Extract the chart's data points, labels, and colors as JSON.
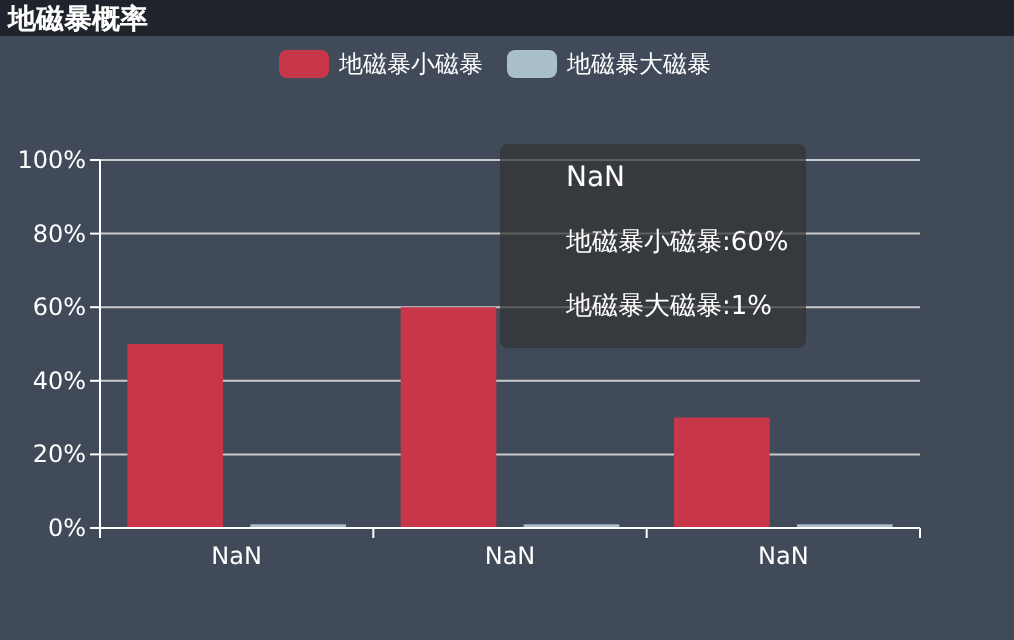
{
  "chart_data": {
    "type": "bar",
    "title": "地磁暴概率",
    "categories": [
      "NaN",
      "NaN",
      "NaN"
    ],
    "series": [
      {
        "name": "地磁暴小磁暴",
        "color": "#c8364a",
        "values": [
          50,
          60,
          30
        ]
      },
      {
        "name": "地磁暴大磁暴",
        "color": "#a9bfcb",
        "values": [
          1,
          1,
          1
        ]
      }
    ],
    "ylim": [
      0,
      100
    ],
    "yticks": [
      {
        "value": 0,
        "label": "0%"
      },
      {
        "value": 20,
        "label": "20%"
      },
      {
        "value": 40,
        "label": "40%"
      },
      {
        "value": 60,
        "label": "60%"
      },
      {
        "value": 80,
        "label": "80%"
      },
      {
        "value": 100,
        "label": "100%"
      }
    ],
    "grid": "y",
    "legend": "top",
    "annotations": [
      "NaN",
      "地磁暴小磁暴:60%",
      "地磁暴大磁暴:1%"
    ]
  }
}
